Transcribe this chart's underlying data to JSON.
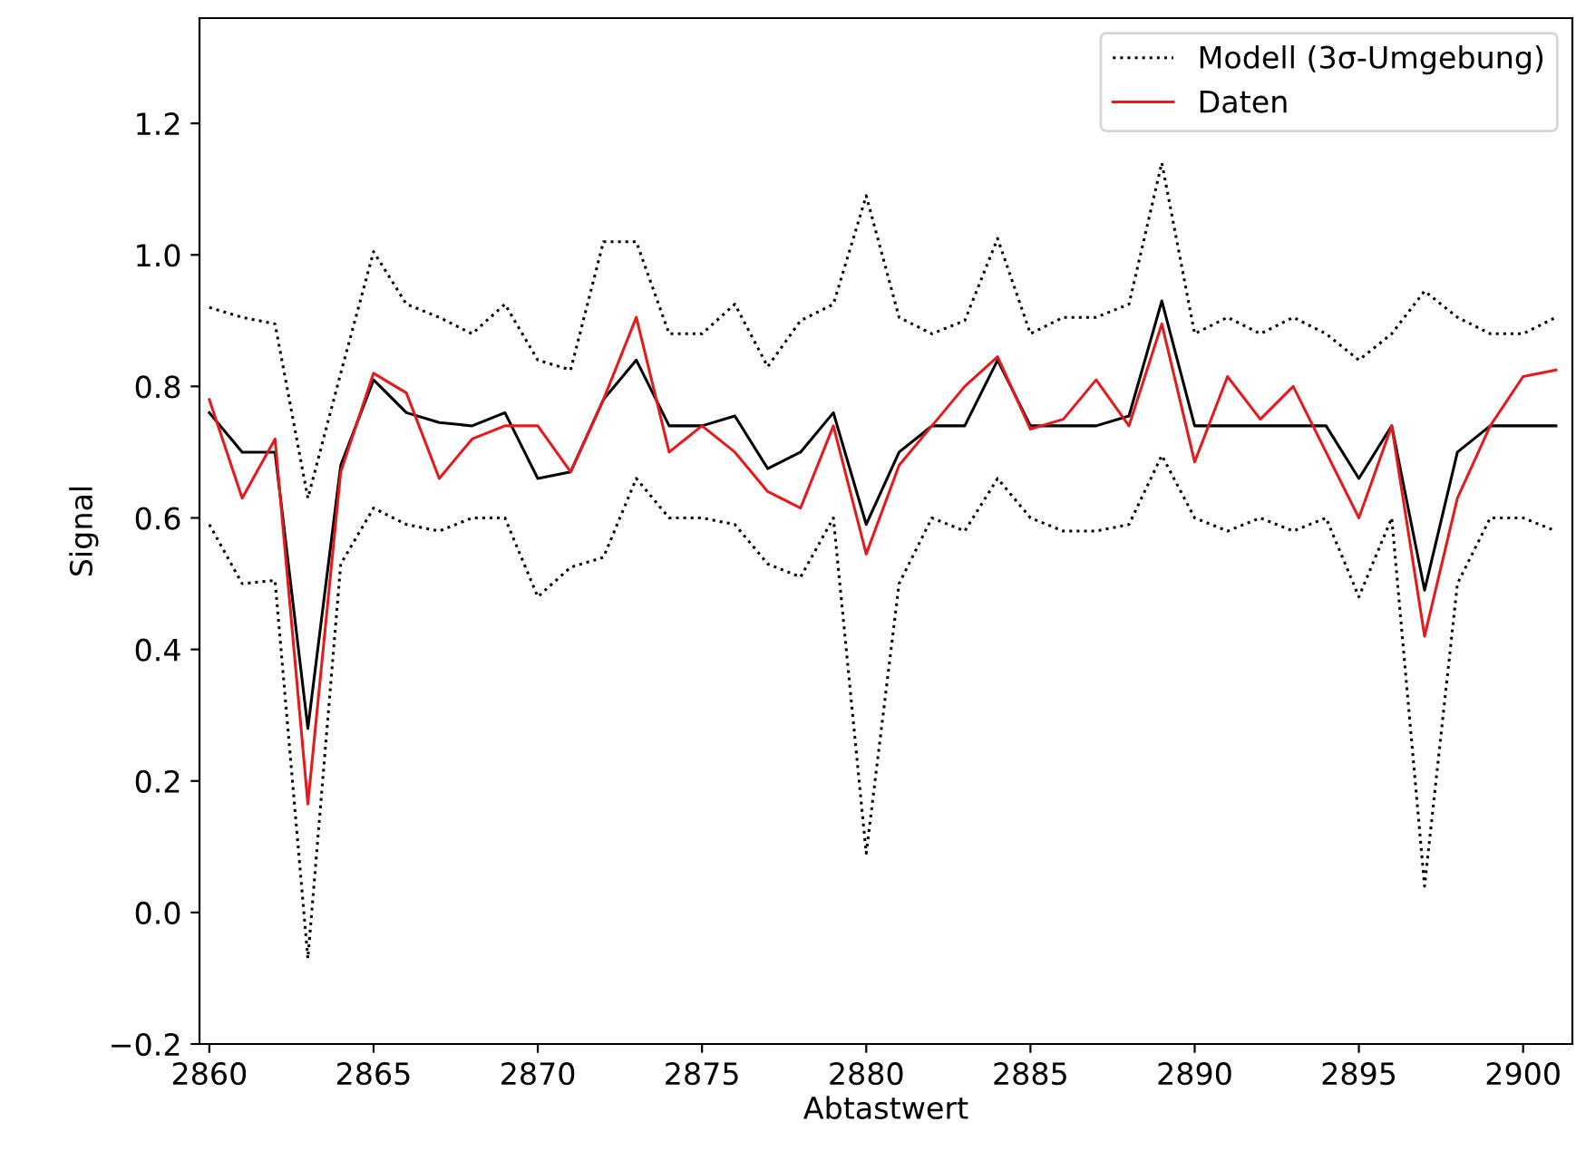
{
  "chart_data": {
    "type": "line",
    "xlabel": "Abtastwert",
    "ylabel": "Signal",
    "x": [
      2860,
      2861,
      2862,
      2863,
      2864,
      2865,
      2866,
      2867,
      2868,
      2869,
      2870,
      2871,
      2872,
      2873,
      2874,
      2875,
      2876,
      2877,
      2878,
      2879,
      2880,
      2881,
      2882,
      2883,
      2884,
      2885,
      2886,
      2887,
      2888,
      2889,
      2890,
      2891,
      2892,
      2893,
      2894,
      2895,
      2896,
      2897,
      2898,
      2899,
      2900,
      2901
    ],
    "series": [
      {
        "color": "#000000",
        "line_style": "solid",
        "values": [
          0.76,
          0.7,
          0.7,
          0.28,
          0.68,
          0.81,
          0.76,
          0.745,
          0.74,
          0.76,
          0.66,
          0.67,
          0.78,
          0.84,
          0.74,
          0.74,
          0.755,
          0.675,
          0.7,
          0.76,
          0.59,
          0.7,
          0.74,
          0.74,
          0.84,
          0.74,
          0.74,
          0.74,
          0.755,
          0.93,
          0.74,
          0.74,
          0.74,
          0.74,
          0.74,
          0.66,
          0.74,
          0.49,
          0.7,
          0.74,
          0.74,
          0.74
        ]
      },
      {
        "name": "Modell (3σ-Umgebung)",
        "color": "#000000",
        "line_style": "dotted",
        "values": [
          0.92,
          0.905,
          0.895,
          0.63,
          0.82,
          1.005,
          0.925,
          0.905,
          0.88,
          0.925,
          0.84,
          0.825,
          1.02,
          1.02,
          0.88,
          0.88,
          0.925,
          0.83,
          0.9,
          0.925,
          1.09,
          0.905,
          0.88,
          0.9,
          1.025,
          0.88,
          0.905,
          0.905,
          0.925,
          1.14,
          0.88,
          0.905,
          0.88,
          0.905,
          0.88,
          0.84,
          0.88,
          0.945,
          0.905,
          0.88,
          0.88,
          0.905
        ]
      },
      {
        "color": "#000000",
        "line_style": "dotted",
        "values": [
          0.59,
          0.5,
          0.505,
          -0.07,
          0.53,
          0.615,
          0.59,
          0.58,
          0.6,
          0.6,
          0.48,
          0.525,
          0.54,
          0.66,
          0.6,
          0.6,
          0.59,
          0.53,
          0.51,
          0.6,
          0.09,
          0.5,
          0.6,
          0.58,
          0.66,
          0.6,
          0.58,
          0.58,
          0.59,
          0.695,
          0.6,
          0.58,
          0.6,
          0.58,
          0.6,
          0.48,
          0.6,
          0.04,
          0.5,
          0.6,
          0.6,
          0.58
        ]
      },
      {
        "name": "Daten",
        "color": "#e41a1c",
        "line_style": "solid",
        "values": [
          0.78,
          0.63,
          0.72,
          0.165,
          0.67,
          0.82,
          0.79,
          0.66,
          0.72,
          0.74,
          0.74,
          0.67,
          0.78,
          0.905,
          0.7,
          0.74,
          0.7,
          0.64,
          0.615,
          0.74,
          0.545,
          0.68,
          0.74,
          0.8,
          0.845,
          0.735,
          0.75,
          0.81,
          0.74,
          0.895,
          0.685,
          0.815,
          0.75,
          0.8,
          0.7,
          0.6,
          0.74,
          0.42,
          0.63,
          0.74,
          0.815,
          0.825
        ]
      }
    ],
    "xlim": [
      2859.7,
      2901.5
    ],
    "ylim": [
      -0.2,
      1.36
    ],
    "xticks": [
      2860,
      2865,
      2870,
      2875,
      2880,
      2885,
      2890,
      2895,
      2900
    ],
    "yticks": [
      {
        "value": -0.2,
        "label": "−0.2"
      },
      {
        "value": 0,
        "label": "0.0"
      },
      {
        "value": 0.2,
        "label": "0.2"
      },
      {
        "value": 0.4,
        "label": "0.4"
      },
      {
        "value": 0.6,
        "label": "0.6"
      },
      {
        "value": 0.8,
        "label": "0.8"
      },
      {
        "value": 1,
        "label": "1.0"
      },
      {
        "value": 1.2,
        "label": "1.2"
      }
    ],
    "grid": false,
    "legend": "top right",
    "marker": "none"
  }
}
